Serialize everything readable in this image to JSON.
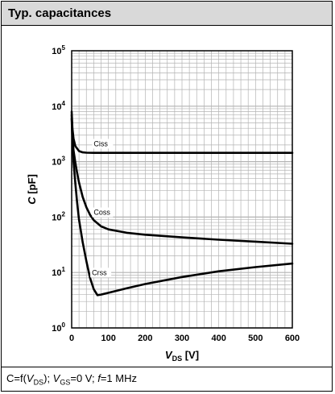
{
  "header": {
    "title": "Typ. capacitances"
  },
  "caption": {
    "prefix": "C=f(",
    "v": "V",
    "ds": "DS",
    "mid": "); ",
    "gs": "GS",
    "vgs_val": "=0 V; ",
    "f": "f",
    "f_val": "=1 MHz"
  },
  "colors": {
    "title_bg": "#d9d9d9",
    "grid": "#b3b3b3",
    "curve": "#000000"
  },
  "chart_data": {
    "type": "line",
    "title": "Typ. capacitances",
    "xlabel_main": "V",
    "xlabel_sub": "DS",
    "xlabel_unit": " [V]",
    "ylabel_main": "C",
    "ylabel_unit": " [pF]",
    "xlim": [
      0,
      600
    ],
    "ylim": [
      1,
      100000
    ],
    "yscale": "log",
    "grid": true,
    "x_ticks": [
      0,
      100,
      200,
      300,
      400,
      500,
      600
    ],
    "x_tick_labels": [
      "0",
      "100",
      "200",
      "300",
      "400",
      "500",
      "600"
    ],
    "y_ticks_exp": [
      0,
      1,
      2,
      3,
      4,
      5
    ],
    "series": [
      {
        "name": "Ciss",
        "label_x": 60,
        "label_y": 1900,
        "x": [
          0,
          2,
          5,
          10,
          20,
          30,
          40,
          60,
          100,
          200,
          300,
          400,
          500,
          600
        ],
        "y": [
          8000,
          4000,
          2600,
          1900,
          1550,
          1470,
          1450,
          1440,
          1440,
          1440,
          1440,
          1440,
          1440,
          1440
        ]
      },
      {
        "name": "Coss",
        "label_x": 60,
        "label_y": 110,
        "x": [
          0,
          2,
          5,
          10,
          15,
          20,
          30,
          40,
          50,
          60,
          80,
          100,
          150,
          200,
          300,
          400,
          500,
          600
        ],
        "y": [
          7000,
          3000,
          1600,
          950,
          620,
          420,
          230,
          150,
          110,
          88,
          68,
          60,
          52,
          48,
          43,
          39,
          36,
          33
        ]
      },
      {
        "name": "Crss",
        "label_x": 55,
        "label_y": 9,
        "x": [
          0,
          2,
          5,
          10,
          15,
          20,
          30,
          40,
          50,
          60,
          70,
          80,
          100,
          150,
          200,
          300,
          400,
          500,
          600
        ],
        "y": [
          6000,
          2500,
          1000,
          400,
          180,
          90,
          35,
          16,
          8,
          5,
          3.9,
          4.0,
          4.3,
          5.2,
          6.2,
          8.3,
          10.5,
          12.5,
          14.5
        ]
      }
    ]
  }
}
